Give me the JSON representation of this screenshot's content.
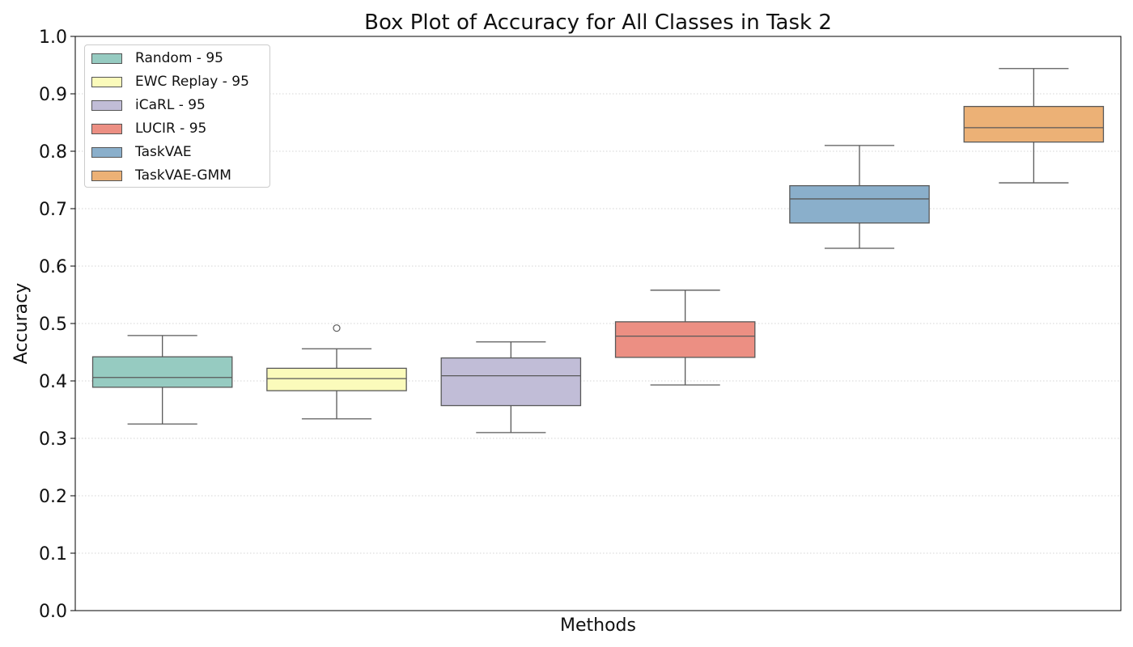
{
  "chart_data": {
    "type": "box",
    "title": "Box Plot of Accuracy for All Classes in Task 2",
    "xlabel": "Methods",
    "ylabel": "Accuracy",
    "ylim": [
      0.0,
      1.0
    ],
    "yticks": [
      "0.0",
      "0.1",
      "0.2",
      "0.3",
      "0.4",
      "0.5",
      "0.6",
      "0.7",
      "0.8",
      "0.9",
      "1.0"
    ],
    "grid": "horizontal dotted",
    "legend_position": "top-left",
    "series": [
      {
        "name": "Random - 95",
        "color": "#96cbc1",
        "whisker_low": 0.325,
        "q1": 0.389,
        "median": 0.406,
        "q3": 0.442,
        "whisker_high": 0.479,
        "outliers": []
      },
      {
        "name": "EWC Replay - 95",
        "color": "#fbfbbb",
        "whisker_low": 0.334,
        "q1": 0.383,
        "median": 0.404,
        "q3": 0.422,
        "whisker_high": 0.456,
        "outliers": [
          0.492
        ]
      },
      {
        "name": "iCaRL - 95",
        "color": "#c1bdd7",
        "whisker_low": 0.31,
        "q1": 0.357,
        "median": 0.409,
        "q3": 0.44,
        "whisker_high": 0.468,
        "outliers": []
      },
      {
        "name": "LUCIR - 95",
        "color": "#ec8f83",
        "whisker_low": 0.393,
        "q1": 0.441,
        "median": 0.478,
        "q3": 0.503,
        "whisker_high": 0.558,
        "outliers": []
      },
      {
        "name": "TaskVAE",
        "color": "#8aafcb",
        "whisker_low": 0.631,
        "q1": 0.675,
        "median": 0.717,
        "q3": 0.74,
        "whisker_high": 0.81,
        "outliers": []
      },
      {
        "name": "TaskVAE-GMM",
        "color": "#ecb176",
        "whisker_low": 0.745,
        "q1": 0.816,
        "median": 0.841,
        "q3": 0.878,
        "whisker_high": 0.944,
        "outliers": []
      }
    ]
  }
}
